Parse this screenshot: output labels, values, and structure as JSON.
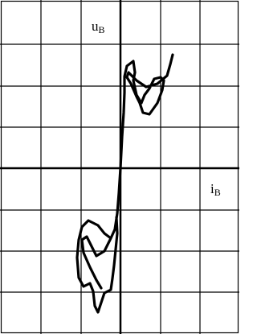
{
  "axes": {
    "vertical": {
      "symbol": "u",
      "subscript": "B"
    },
    "horizontal": {
      "symbol": "i",
      "subscript": "B"
    }
  }
}
